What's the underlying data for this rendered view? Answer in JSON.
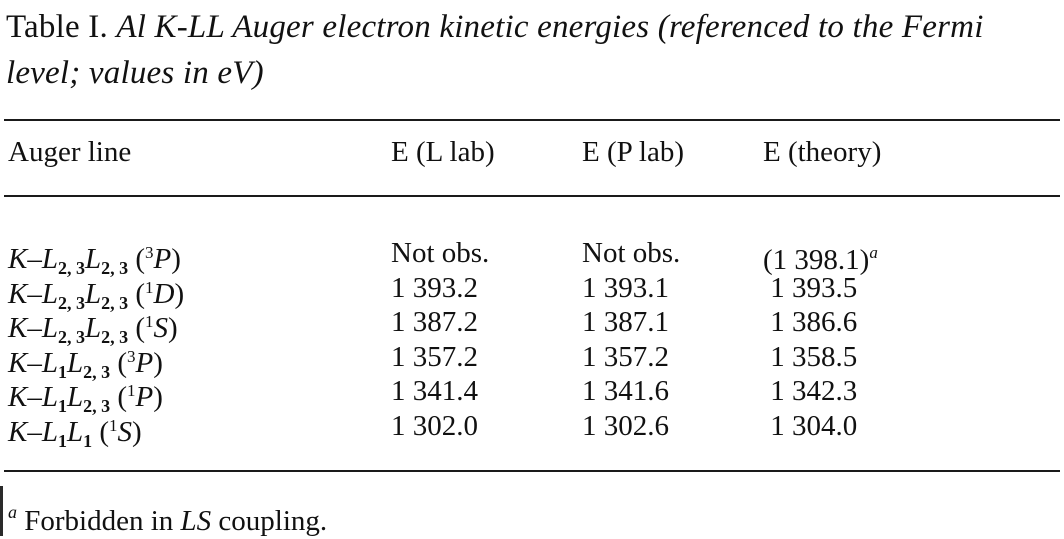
{
  "caption": {
    "label": "Table I.",
    "title": "Al K-LL Auger electron kinetic energies (referenced to the Fermi level; values in eV)"
  },
  "table": {
    "headers": [
      "Auger line",
      "E (L lab)",
      "E (P lab)",
      "E (theory)"
    ],
    "rows": [
      {
        "line": {
          "k": "K",
          "dash": "–",
          "l1": "L",
          "s1": "2, 3",
          "l2": "L",
          "s2": "2, 3",
          "sup": "3",
          "term": "P"
        },
        "l_lab": "Not obs.",
        "p_lab": "Not obs.",
        "theory": "(1 398.1)",
        "theory_note": "a"
      },
      {
        "line": {
          "k": "K",
          "dash": "–",
          "l1": "L",
          "s1": "2, 3",
          "l2": "L",
          "s2": "2, 3",
          "sup": "1",
          "term": "D"
        },
        "l_lab": "1 393.2",
        "p_lab": "1 393.1",
        "theory": "1 393.5",
        "theory_note": ""
      },
      {
        "line": {
          "k": "K",
          "dash": "–",
          "l1": "L",
          "s1": "2, 3",
          "l2": "L",
          "s2": "2, 3",
          "sup": "1",
          "term": "S"
        },
        "l_lab": "1 387.2",
        "p_lab": "1 387.1",
        "theory": "1 386.6",
        "theory_note": ""
      },
      {
        "line": {
          "k": "K",
          "dash": "–",
          "l1": "L",
          "s1": "1",
          "l2": "L",
          "s2": "2, 3",
          "sup": "3",
          "term": "P"
        },
        "l_lab": "1 357.2",
        "p_lab": "1 357.2",
        "theory": "1 358.5",
        "theory_note": ""
      },
      {
        "line": {
          "k": "K",
          "dash": "–",
          "l1": "L",
          "s1": "1",
          "l2": "L",
          "s2": "2, 3",
          "sup": "1",
          "term": "P"
        },
        "l_lab": "1 341.4",
        "p_lab": "1 341.6",
        "theory": "1 342.3",
        "theory_note": ""
      },
      {
        "line": {
          "k": "K",
          "dash": "–",
          "l1": "L",
          "s1": "1",
          "l2": "L",
          "s2": "1",
          "sup": "1",
          "term": "S"
        },
        "l_lab": "1 302.0",
        "p_lab": "1 302.6",
        "theory": "1 304.0",
        "theory_note": ""
      }
    ]
  },
  "footnote": {
    "marker": "a",
    "text_before": "Forbidden in",
    "text_italic": "LS",
    "text_after": "coupling."
  }
}
